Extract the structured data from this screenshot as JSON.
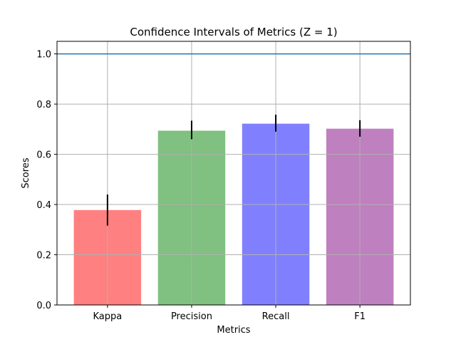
{
  "chart_data": {
    "type": "bar",
    "title": "Confidence Intervals of Metrics (Z = 1)",
    "xlabel": "Metrics",
    "ylabel": "Scores",
    "categories": [
      "Kappa",
      "Precision",
      "Recall",
      "F1"
    ],
    "values": [
      0.378,
      0.694,
      0.722,
      0.702
    ],
    "error_low": [
      0.316,
      0.66,
      0.69,
      0.67
    ],
    "error_high": [
      0.44,
      0.734,
      0.758,
      0.736
    ],
    "bar_colors": [
      "#ff8080",
      "#80c080",
      "#8080ff",
      "#bf80bf"
    ],
    "ylim": [
      0,
      1.05
    ],
    "yticks": [
      0.0,
      0.2,
      0.4,
      0.6,
      0.8,
      1.0
    ],
    "ytick_labels": [
      "0.0",
      "0.2",
      "0.4",
      "0.6",
      "0.8",
      "1.0"
    ],
    "reference_line": {
      "y": 1.0,
      "color": "#1f77b4"
    },
    "grid": true
  }
}
